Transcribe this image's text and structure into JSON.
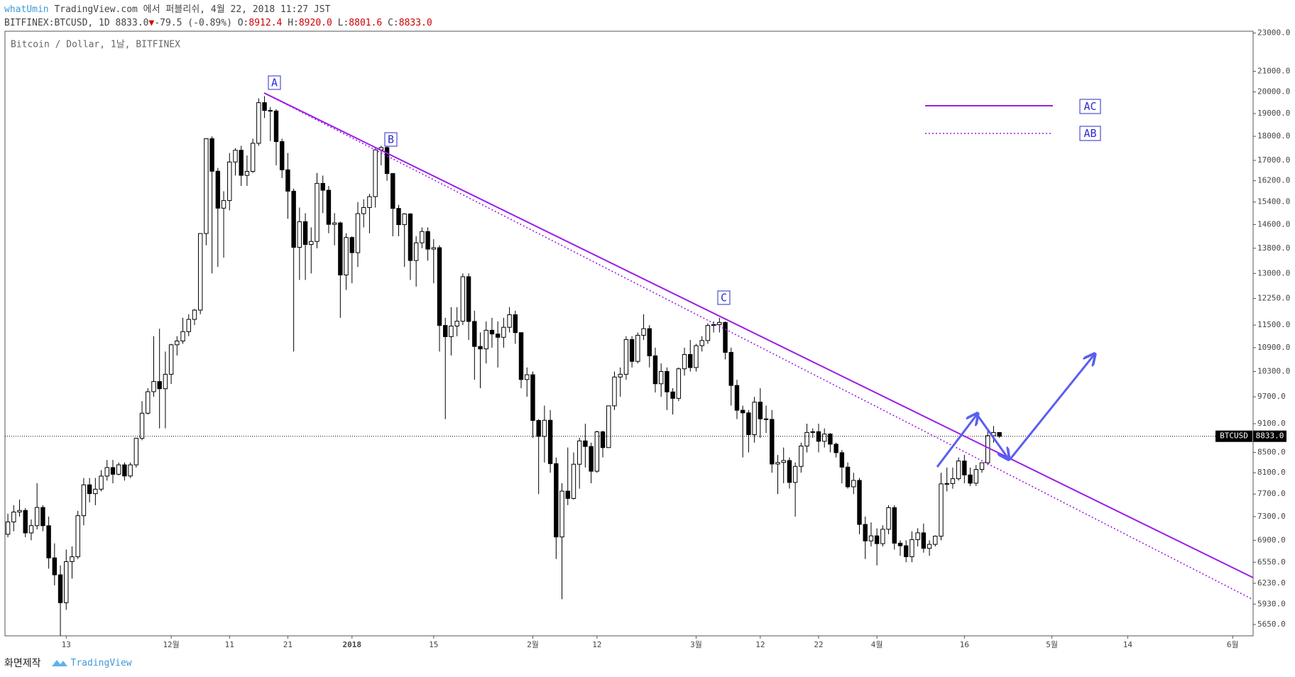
{
  "header": {
    "author": "whatUmin",
    "published": "TradingView.com 에서 퍼블리쉬, 4월 22, 2018 11:27 JST",
    "symbol": "BITFINEX:BTCUSD, 1D 8833.0",
    "arrow": "▼",
    "change": "-79.5 (-0.89%)",
    "ohlc": [
      {
        "label": "O:",
        "value": "8912.4"
      },
      {
        "label": "H:",
        "value": "8920.0"
      },
      {
        "label": "L:",
        "value": "8801.6"
      },
      {
        "label": "C:",
        "value": "8833.0"
      }
    ]
  },
  "chart_data": {
    "type": "candlestick",
    "title": "Bitcoin / Dollar, 1날, BITFINEX",
    "categories": [
      null,
      null,
      null,
      null,
      null,
      null,
      null,
      null,
      null,
      null,
      "13",
      null,
      null,
      null,
      null,
      null,
      null,
      null,
      null,
      null,
      null,
      null,
      null,
      null,
      null,
      null,
      null,
      null,
      "12월",
      null,
      null,
      null,
      null,
      null,
      null,
      null,
      null,
      null,
      "11",
      null,
      null,
      null,
      null,
      null,
      null,
      null,
      null,
      null,
      "21",
      null,
      null,
      null,
      null,
      null,
      null,
      null,
      null,
      null,
      null,
      "2018",
      null,
      null,
      null,
      null,
      null,
      null,
      null,
      null,
      null,
      null,
      null,
      null,
      null,
      "15",
      null,
      null,
      null,
      null,
      null,
      null,
      null,
      null,
      null,
      null,
      null,
      null,
      null,
      null,
      null,
      null,
      "2월",
      null,
      null,
      null,
      null,
      null,
      null,
      null,
      null,
      null,
      null,
      "12",
      null,
      null,
      null,
      null,
      null,
      null,
      null,
      null,
      null,
      null,
      null,
      null,
      null,
      null,
      null,
      null,
      "3월",
      null,
      null,
      null,
      null,
      null,
      null,
      null,
      null,
      null,
      null,
      "12",
      null,
      null,
      null,
      null,
      null,
      null,
      null,
      null,
      null,
      "22",
      null,
      null,
      null,
      null,
      null,
      null,
      null,
      null,
      null,
      "4월",
      null,
      null,
      null,
      null,
      null,
      null,
      null,
      null,
      null,
      null,
      null,
      null,
      null,
      null,
      "16",
      null,
      null,
      null,
      null,
      null,
      null,
      null,
      null,
      null,
      null,
      null,
      null,
      null,
      null,
      "5월",
      null,
      null,
      null,
      null,
      null,
      null,
      null,
      null,
      null,
      null,
      null,
      null,
      "14",
      null,
      null,
      null,
      null,
      null,
      null,
      null,
      null,
      null,
      null,
      null,
      null,
      null,
      null,
      null,
      null,
      null,
      "6월",
      null,
      null,
      null
    ],
    "open": [
      7000,
      7208,
      7379,
      7407,
      7022,
      7144,
      7459,
      7143,
      6618,
      6357,
      5950,
      6559,
      6635,
      7315,
      7871,
      7708,
      7790,
      8036,
      8200,
      8071,
      8253,
      8038,
      8253,
      8790,
      9330,
      9818,
      10058,
      9888,
      10233,
      10975,
      11074,
      11323,
      11657,
      11916,
      14291,
      17899,
      16569,
      15178,
      15455,
      16936,
      17415,
      16408,
      16564,
      17706,
      19497,
      19140,
      19114,
      17776,
      16624,
      15802,
      13831,
      14699,
      13925,
      14026,
      16099,
      15838,
      14606,
      14656,
      12952,
      14156,
      13657,
      14982,
      15201,
      15599,
      17429,
      17527,
      16477,
      15170,
      14595,
      14973,
      13405,
      13980,
      14360,
      13772,
      13819,
      11490,
      11188,
      11474,
      11607,
      12899,
      11600,
      10931,
      10868,
      11359,
      11259,
      11171,
      11440,
      11786,
      11296,
      10106,
      10221,
      9170,
      8830,
      9174,
      8277,
      6955,
      7754,
      7621,
      8265,
      8736,
      8621,
      8129,
      8926,
      8598,
      9494,
      10166,
      10233,
      11112,
      10551,
      11225,
      11403,
      10690,
      10005,
      10301,
      9813,
      9664,
      10366,
      10725,
      10397,
      10951,
      11086,
      11489,
      11512,
      11573,
      10779,
      9965,
      9395,
      9337,
      8866,
      9578,
      9205,
      9194,
      8269,
      8300,
      8338,
      7916,
      8223,
      8630,
      8913,
      8929,
      8728,
      8879,
      8668,
      8495,
      8209,
      7834,
      7954,
      7165,
      6890,
      6973,
      6845,
      7083,
      7456,
      6853,
      6811,
      6636,
      6911,
      7023,
      6770,
      6834,
      6968,
      7889,
      7895,
      7986,
      8329,
      8058,
      7902,
      8163,
      8294,
      8845,
      8912.4,
      null,
      null,
      null,
      null,
      null,
      null,
      null,
      null,
      null,
      null,
      null,
      null,
      null,
      null,
      null,
      null,
      null,
      null,
      null,
      null,
      null,
      null,
      null,
      null,
      null,
      null,
      null,
      null,
      null,
      null,
      null,
      null,
      null,
      null,
      null,
      null,
      null,
      null,
      null,
      null,
      null,
      null,
      null
    ],
    "high": [
      7350,
      7500,
      7600,
      7450,
      7250,
      7900,
      7500,
      7300,
      6850,
      6500,
      6750,
      6800,
      7400,
      8000,
      8000,
      8000,
      8150,
      8350,
      8350,
      8300,
      8300,
      8300,
      8800,
      9600,
      9900,
      11200,
      11400,
      10800,
      11000,
      11200,
      11700,
      11800,
      11950,
      14300,
      17900,
      18000,
      16700,
      15800,
      17300,
      17500,
      17600,
      17200,
      17900,
      19700,
      19800,
      19300,
      19200,
      17900,
      17300,
      15900,
      15200,
      15000,
      14500,
      16500,
      16400,
      16000,
      15000,
      14700,
      14300,
      14200,
      15400,
      15500,
      15700,
      17500,
      17600,
      17600,
      16500,
      15300,
      15000,
      15000,
      14200,
      14500,
      14500,
      14100,
      13900,
      11700,
      12000,
      12000,
      13000,
      13000,
      11900,
      11300,
      11600,
      11700,
      11600,
      11700,
      12000,
      11900,
      11300,
      10400,
      10300,
      9200,
      9500,
      9400,
      8400,
      7900,
      8600,
      8500,
      8800,
      9100,
      8700,
      8950,
      8950,
      9500,
      10300,
      10400,
      11200,
      11200,
      11300,
      11800,
      11500,
      10900,
      10500,
      10400,
      9900,
      10400,
      10900,
      11100,
      11000,
      11200,
      11550,
      11600,
      11700,
      11600,
      10900,
      10100,
      9500,
      9400,
      9700,
      9900,
      9500,
      9400,
      8450,
      8600,
      8400,
      8300,
      8700,
      9100,
      9000,
      9100,
      9000,
      8900,
      8700,
      8550,
      8300,
      8100,
      8000,
      7300,
      7200,
      7100,
      7150,
      7500,
      7500,
      6900,
      6900,
      7050,
      7100,
      7180,
      6900,
      6980,
      8100,
      8200,
      8200,
      8400,
      8450,
      8200,
      8250,
      8300,
      8950,
      9050,
      8920,
      null,
      null,
      null,
      null,
      null,
      null,
      null,
      null,
      null,
      null,
      null,
      null,
      null,
      null,
      null,
      null,
      null,
      null,
      null,
      null,
      null,
      null,
      null,
      null,
      null,
      null,
      null,
      null,
      null,
      null,
      null,
      null,
      null,
      null,
      null,
      null,
      null,
      null,
      null,
      null,
      null,
      null,
      null
    ],
    "low": [
      6950,
      7050,
      7300,
      6950,
      6900,
      7080,
      7050,
      6450,
      6200,
      5500,
      5850,
      6300,
      6600,
      7150,
      7550,
      7500,
      7750,
      7950,
      7900,
      8050,
      7950,
      8000,
      8200,
      8750,
      9300,
      9700,
      9000,
      9000,
      10000,
      10700,
      11000,
      11200,
      11500,
      11800,
      13900,
      13000,
      13200,
      13500,
      15100,
      16400,
      16000,
      16000,
      16500,
      17600,
      18800,
      17800,
      16800,
      16300,
      14800,
      10800,
      12800,
      12800,
      13000,
      13800,
      15000,
      14300,
      13900,
      11700,
      12500,
      12700,
      13200,
      14500,
      14300,
      15200,
      16800,
      16200,
      14200,
      14200,
      13200,
      12800,
      12600,
      13800,
      13400,
      12700,
      10800,
      9200,
      10700,
      11200,
      11500,
      11100,
      10100,
      9900,
      10500,
      10900,
      10400,
      10900,
      11300,
      11000,
      9900,
      9700,
      8800,
      7700,
      8300,
      8100,
      6600,
      6000,
      7500,
      7600,
      7800,
      8200,
      7900,
      8100,
      8400,
      8600,
      9400,
      9700,
      10100,
      10400,
      10500,
      11100,
      10400,
      9800,
      9700,
      9400,
      9300,
      9600,
      10200,
      10300,
      10300,
      10800,
      11000,
      11300,
      11300,
      10600,
      9500,
      9200,
      8400,
      8500,
      8700,
      8800,
      8900,
      8100,
      7700,
      7900,
      7800,
      7300,
      8100,
      8500,
      8800,
      8500,
      8600,
      8500,
      8400,
      7900,
      7800,
      7700,
      7000,
      6600,
      6800,
      6500,
      6800,
      7000,
      6750,
      6650,
      6550,
      6550,
      6800,
      6700,
      6650,
      6800,
      6900,
      7750,
      7800,
      7950,
      7900,
      7850,
      7850,
      8100,
      8250,
      8700,
      8801.6,
      null,
      null,
      null,
      null,
      null,
      null,
      null,
      null,
      null,
      null,
      null,
      null,
      null,
      null,
      null,
      null,
      null,
      null,
      null,
      null,
      null,
      null,
      null,
      null,
      null,
      null,
      null,
      null,
      null,
      null,
      null,
      null,
      null,
      null,
      null,
      null,
      null,
      null,
      null,
      null,
      null,
      null,
      null
    ],
    "close": [
      7208,
      7379,
      7407,
      7022,
      7144,
      7459,
      7143,
      6618,
      6357,
      5950,
      6559,
      6635,
      7315,
      7871,
      7708,
      7790,
      8036,
      8200,
      8071,
      8253,
      8038,
      8253,
      8790,
      9330,
      9818,
      10058,
      9888,
      10233,
      10975,
      11074,
      11323,
      11657,
      11916,
      14291,
      17899,
      16569,
      15178,
      15455,
      16936,
      17415,
      16408,
      16564,
      17706,
      19497,
      19140,
      19114,
      17776,
      16624,
      15802,
      13831,
      14699,
      13925,
      14026,
      16099,
      15838,
      14606,
      14656,
      12952,
      14156,
      13657,
      14982,
      15201,
      15599,
      17429,
      17527,
      16477,
      15170,
      14595,
      14973,
      13405,
      13980,
      14360,
      13772,
      13819,
      11490,
      11188,
      11474,
      11607,
      12899,
      11600,
      10931,
      10868,
      11359,
      11259,
      11171,
      11440,
      11786,
      11296,
      10106,
      10221,
      9170,
      8830,
      9174,
      8277,
      6955,
      7754,
      7621,
      8265,
      8736,
      8621,
      8129,
      8926,
      8598,
      9494,
      10166,
      10233,
      11112,
      10551,
      11225,
      11403,
      10690,
      10005,
      10301,
      9813,
      9664,
      10366,
      10725,
      10397,
      10951,
      11086,
      11489,
      11512,
      11573,
      10779,
      9965,
      9395,
      9337,
      8866,
      9578,
      9205,
      9194,
      8269,
      8300,
      8338,
      7916,
      8223,
      8630,
      8913,
      8929,
      8728,
      8879,
      8668,
      8495,
      8209,
      7834,
      7954,
      7165,
      6890,
      6973,
      6845,
      7083,
      7456,
      6853,
      6811,
      6636,
      6911,
      7023,
      6770,
      6834,
      6968,
      7889,
      7895,
      7986,
      8329,
      8058,
      7902,
      8163,
      8294,
      8845,
      8912.5,
      8833,
      null,
      null,
      null,
      null,
      null,
      null,
      null,
      null,
      null,
      null,
      null,
      null,
      null,
      null,
      null,
      null,
      null,
      null,
      null,
      null,
      null,
      null,
      null,
      null,
      null,
      null,
      null,
      null,
      null,
      null,
      null,
      null,
      null,
      null,
      null,
      null,
      null,
      null,
      null,
      null,
      null,
      null,
      null
    ],
    "up_color": "#ffffff",
    "down_color": "#000000",
    "edge_color": "#000000",
    "log_scale": true,
    "grid": false,
    "ylim": [
      5500,
      23100
    ],
    "yticks": [
      {
        "value": 23000,
        "label": "23000.0"
      },
      {
        "value": 21000,
        "label": "21000.0"
      },
      {
        "value": 20000,
        "label": "20000.0"
      },
      {
        "value": 19000,
        "label": "19000.0"
      },
      {
        "value": 18000,
        "label": "18000.0"
      },
      {
        "value": 17000,
        "label": "17000.0"
      },
      {
        "value": 16200,
        "label": "16200.0"
      },
      {
        "value": 15400,
        "label": "15400.0"
      },
      {
        "value": 14600,
        "label": "14600.0"
      },
      {
        "value": 13800,
        "label": "13800.0"
      },
      {
        "value": 13000,
        "label": "13000.0"
      },
      {
        "value": 12250,
        "label": "12250.0"
      },
      {
        "value": 11500,
        "label": "11500.0"
      },
      {
        "value": 10900,
        "label": "10900.0"
      },
      {
        "value": 10300,
        "label": "10300.0"
      },
      {
        "value": 9700,
        "label": "9700.0"
      },
      {
        "value": 9100,
        "label": "9100.0"
      },
      {
        "value": 8500,
        "label": "8500.0"
      },
      {
        "value": 8100,
        "label": "8100.0"
      },
      {
        "value": 7700,
        "label": "7700.0"
      },
      {
        "value": 7300,
        "label": "7300.0"
      },
      {
        "value": 6900,
        "label": "6900.0"
      },
      {
        "value": 6550,
        "label": "6550.0"
      },
      {
        "value": 6230,
        "label": "6230.0"
      },
      {
        "value": 5930,
        "label": "5930.0"
      },
      {
        "value": 5650,
        "label": "5650.0"
      }
    ],
    "last_price": {
      "name": "BTCUSD",
      "value": 8833,
      "label": "8833.0"
    },
    "point_labels": [
      "A",
      "B",
      "C"
    ],
    "line_labels": [
      "AC",
      "AB"
    ]
  },
  "footer": {
    "credit": "화면제작",
    "brand": "TradingView"
  }
}
